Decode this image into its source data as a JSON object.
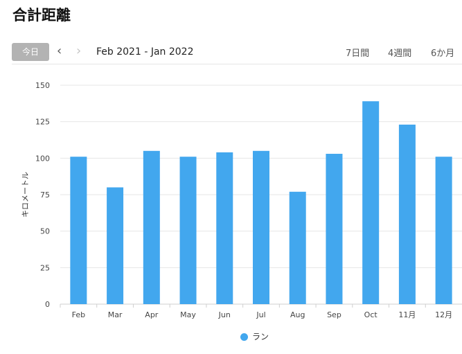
{
  "page": {
    "title": "合計距離"
  },
  "toolbar": {
    "today_label": "今日",
    "prev_icon": "‹",
    "next_icon": "›",
    "date_range": "Feb 2021 - Jan 2022",
    "ranges": [
      "7日間",
      "4週間",
      "6か月"
    ]
  },
  "chart_data": {
    "type": "bar",
    "categories": [
      "Feb",
      "Mar",
      "Apr",
      "May",
      "Jun",
      "Jul",
      "Aug",
      "Sep",
      "Oct",
      "11月",
      "12月"
    ],
    "series": [
      {
        "name": "ラン",
        "color": "#42a7ee",
        "values": [
          101,
          80,
          105,
          101,
          104,
          105,
          77,
          103,
          139,
          123,
          101
        ]
      }
    ],
    "ylabel": "キロメートル",
    "ylim": [
      0,
      150
    ],
    "yticks": [
      0,
      25,
      50,
      75,
      100,
      125,
      150
    ],
    "grid": true,
    "legend_position": "bottom-center"
  }
}
